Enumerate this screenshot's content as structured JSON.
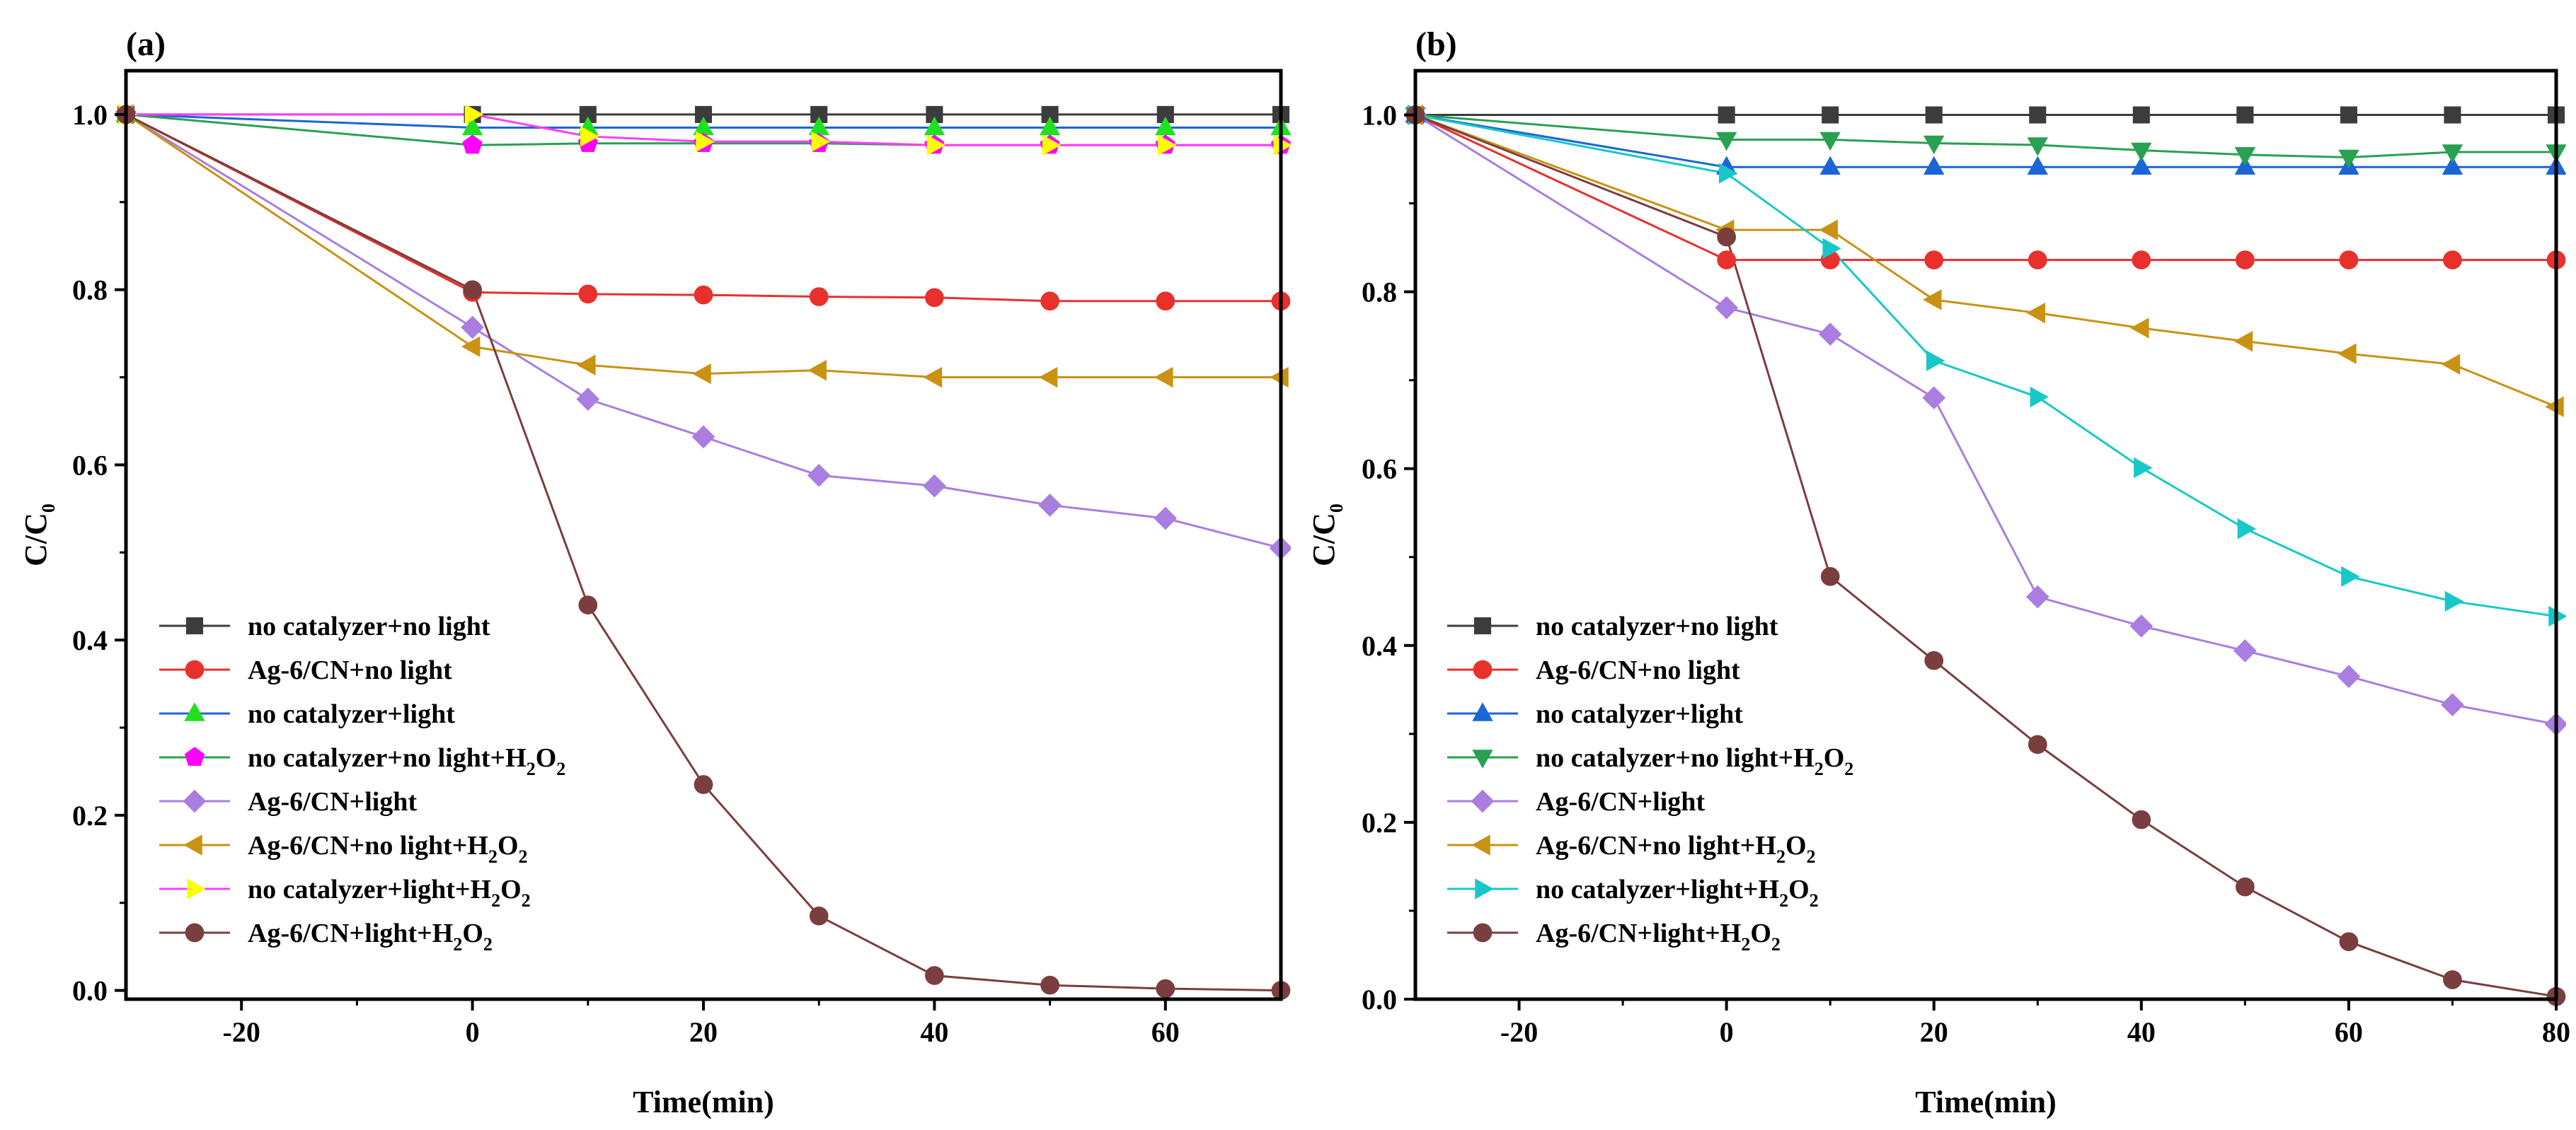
{
  "chart_data": [
    {
      "id": "a",
      "type": "line",
      "panel_label": "(a)",
      "xlabel": "Time(min)",
      "ylabel": "C/C",
      "ylabel_sub": "0",
      "xlim": [
        -30,
        70
      ],
      "ylim": [
        -0.01,
        1.05
      ],
      "xticks": [
        -20,
        0,
        20,
        40,
        60
      ],
      "xtick_labels": [
        "-20",
        "0",
        "20",
        "40",
        "60"
      ],
      "yticks": [
        0.0,
        0.2,
        0.4,
        0.6,
        0.8,
        1.0
      ],
      "ytick_labels": [
        "0.0",
        "0.2",
        "0.4",
        "0.6",
        "0.8",
        "1.0"
      ],
      "legend_position": "bottom-left",
      "series": [
        {
          "name": "no catalyzer+no light",
          "color": "#3c3c3c",
          "marker": "square",
          "x": [
            -30,
            0,
            10,
            20,
            30,
            40,
            50,
            60,
            70
          ],
          "y": [
            1.0,
            1.0,
            1.0,
            1.0,
            1.0,
            1.0,
            1.0,
            1.0,
            1.0
          ]
        },
        {
          "name": "Ag-6/CN+no light",
          "color": "#e8302c",
          "marker": "circle",
          "x": [
            -30,
            0,
            10,
            20,
            30,
            40,
            50,
            60,
            70
          ],
          "y": [
            1.0,
            0.797,
            0.795,
            0.794,
            0.792,
            0.791,
            0.787,
            0.787,
            0.787
          ]
        },
        {
          "name": "no catalyzer+light",
          "color": "#1a66d6",
          "marker": "triangle-up",
          "fill": "#20e020",
          "x": [
            -30,
            0,
            10,
            20,
            30,
            40,
            50,
            60,
            70
          ],
          "y": [
            1.0,
            0.985,
            0.985,
            0.985,
            0.985,
            0.985,
            0.985,
            0.985,
            0.985
          ]
        },
        {
          "name": "no catalyzer+no light+H",
          "name_sub1": "2",
          "name_mid": "O",
          "name_sub2": "2",
          "color": "#2aa052",
          "marker": "pentagon",
          "fill": "#ff00ff",
          "x": [
            -30,
            0,
            10,
            20,
            30,
            40,
            50,
            60,
            70
          ],
          "y": [
            1.0,
            0.965,
            0.967,
            0.967,
            0.967,
            0.965,
            0.965,
            0.965,
            0.965
          ]
        },
        {
          "name": "Ag-6/CN+light",
          "color": "#a97ee0",
          "marker": "diamond",
          "x": [
            -30,
            0,
            10,
            20,
            30,
            40,
            50,
            60,
            70
          ],
          "y": [
            1.0,
            0.757,
            0.675,
            0.632,
            0.588,
            0.576,
            0.554,
            0.539,
            0.505
          ]
        },
        {
          "name": "Ag-6/CN+no light+H",
          "name_sub1": "2",
          "name_mid": "O",
          "name_sub2": "2",
          "color": "#c99212",
          "marker": "triangle-left",
          "x": [
            -30,
            0,
            10,
            20,
            30,
            40,
            50,
            60,
            70
          ],
          "y": [
            1.0,
            0.735,
            0.714,
            0.704,
            0.708,
            0.7,
            0.7,
            0.7,
            0.7
          ]
        },
        {
          "name": "no catalyzer+light+H",
          "name_sub1": "2",
          "name_mid": "O",
          "name_sub2": "2",
          "color": "#ff3cff",
          "marker": "triangle-right",
          "fill": "#ffff00",
          "x": [
            -30,
            0,
            10,
            20,
            30,
            40,
            50,
            60,
            70
          ],
          "y": [
            1.0,
            1.0,
            0.975,
            0.969,
            0.969,
            0.965,
            0.965,
            0.965,
            0.965
          ]
        },
        {
          "name": "Ag-6/CN+light+H",
          "name_sub1": "2",
          "name_mid": "O",
          "name_sub2": "2",
          "color": "#7a3e3e",
          "marker": "circle",
          "x": [
            -30,
            0,
            10,
            20,
            30,
            40,
            50,
            60,
            70
          ],
          "y": [
            1.0,
            0.8,
            0.44,
            0.235,
            0.085,
            0.017,
            0.006,
            0.002,
            0.0
          ]
        }
      ]
    },
    {
      "id": "b",
      "type": "line",
      "panel_label": "(b)",
      "xlabel": "Time(min)",
      "ylabel": "C/C",
      "ylabel_sub": "0",
      "xlim": [
        -30,
        80
      ],
      "ylim": [
        0.0,
        1.05
      ],
      "xticks": [
        -20,
        0,
        20,
        40,
        60,
        80
      ],
      "xtick_labels": [
        "-20",
        "0",
        "20",
        "40",
        "60",
        "80"
      ],
      "yticks": [
        0.0,
        0.2,
        0.4,
        0.6,
        0.8,
        1.0
      ],
      "ytick_labels": [
        "0.0",
        "0.2",
        "0.4",
        "0.6",
        "0.8",
        "1.0"
      ],
      "legend_position": "bottom-left",
      "series": [
        {
          "name": "no catalyzer+no light",
          "color": "#3c3c3c",
          "marker": "square",
          "x": [
            -30,
            0,
            10,
            20,
            30,
            40,
            50,
            60,
            70,
            80
          ],
          "y": [
            1.0,
            1.0,
            1.0,
            1.0,
            1.0,
            1.0,
            1.0,
            1.0,
            1.0,
            1.0
          ]
        },
        {
          "name": "Ag-6/CN+no light",
          "color": "#e8302c",
          "marker": "circle",
          "x": [
            -30,
            0,
            10,
            20,
            30,
            40,
            50,
            60,
            70,
            80
          ],
          "y": [
            1.0,
            0.836,
            0.836,
            0.836,
            0.836,
            0.836,
            0.836,
            0.836,
            0.836,
            0.836
          ]
        },
        {
          "name": "no catalyzer+light",
          "color": "#1a66d6",
          "marker": "triangle-up",
          "x": [
            -30,
            0,
            10,
            20,
            30,
            40,
            50,
            60,
            70,
            80
          ],
          "y": [
            1.0,
            0.941,
            0.941,
            0.941,
            0.941,
            0.941,
            0.941,
            0.941,
            0.941,
            0.941
          ]
        },
        {
          "name": "no catalyzer+no light+H",
          "name_sub1": "2",
          "name_mid": "O",
          "name_sub2": "2",
          "color": "#2aa052",
          "marker": "triangle-down",
          "x": [
            -30,
            0,
            10,
            20,
            30,
            40,
            50,
            60,
            70,
            80
          ],
          "y": [
            1.0,
            0.972,
            0.972,
            0.968,
            0.966,
            0.96,
            0.955,
            0.952,
            0.958,
            0.958
          ]
        },
        {
          "name": "Ag-6/CN+light",
          "color": "#a97ee0",
          "marker": "diamond",
          "x": [
            -30,
            0,
            10,
            20,
            30,
            40,
            50,
            60,
            70,
            80
          ],
          "y": [
            1.0,
            0.782,
            0.752,
            0.68,
            0.455,
            0.422,
            0.394,
            0.365,
            0.333,
            0.311
          ]
        },
        {
          "name": "Ag-6/CN+no light+H",
          "name_sub1": "2",
          "name_mid": "O",
          "name_sub2": "2",
          "color": "#c99212",
          "marker": "triangle-left",
          "x": [
            -30,
            0,
            10,
            20,
            30,
            40,
            50,
            60,
            70,
            80
          ],
          "y": [
            1.0,
            0.87,
            0.87,
            0.791,
            0.776,
            0.759,
            0.744,
            0.73,
            0.718,
            0.67
          ]
        },
        {
          "name": "no catalyzer+light+H",
          "name_sub1": "2",
          "name_mid": "O",
          "name_sub2": "2",
          "color": "#18c8c8",
          "marker": "triangle-right",
          "x": [
            -30,
            0,
            10,
            20,
            30,
            40,
            50,
            60,
            70,
            80
          ],
          "y": [
            1.0,
            0.934,
            0.849,
            0.722,
            0.681,
            0.601,
            0.532,
            0.478,
            0.45,
            0.433
          ]
        },
        {
          "name": "Ag-6/CN+light+H",
          "name_sub1": "2",
          "name_mid": "O",
          "name_sub2": "2",
          "color": "#7a3e3e",
          "marker": "circle",
          "x": [
            -30,
            0,
            10,
            20,
            30,
            40,
            50,
            60,
            70,
            80
          ],
          "y": [
            1.0,
            0.862,
            0.478,
            0.383,
            0.288,
            0.203,
            0.127,
            0.065,
            0.022,
            0.003
          ]
        }
      ]
    }
  ]
}
